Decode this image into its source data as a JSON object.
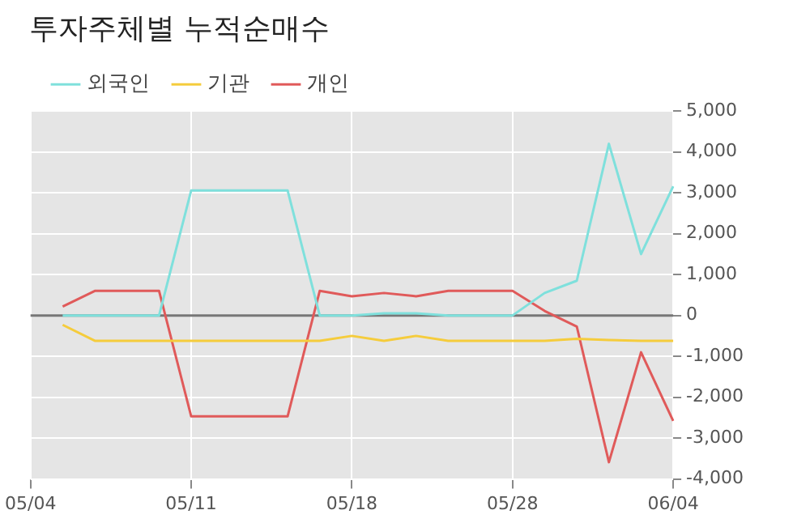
{
  "chart_data": {
    "type": "line",
    "title": "투자주체별 누적순매수",
    "categories": [
      "05/04",
      null,
      null,
      null,
      null,
      "05/11",
      null,
      null,
      null,
      null,
      "05/18",
      null,
      null,
      null,
      null,
      "05/28",
      null,
      null,
      null,
      null,
      "06/04"
    ],
    "series": [
      {
        "name": "외국인",
        "color": "#7fe0dc",
        "values": [
          null,
          0,
          0,
          0,
          0,
          3060,
          3060,
          3060,
          3060,
          0,
          0,
          50,
          50,
          0,
          0,
          0,
          550,
          850,
          4200,
          1500,
          3160
        ]
      },
      {
        "name": "기관",
        "color": "#f5cc3c",
        "values": [
          null,
          -230,
          -620,
          -620,
          -620,
          -620,
          -620,
          -620,
          -620,
          -620,
          -500,
          -620,
          -500,
          -620,
          -620,
          -620,
          -620,
          -570,
          -600,
          -620,
          -620
        ]
      },
      {
        "name": "개인",
        "color": "#e05a5a",
        "values": [
          null,
          220,
          600,
          600,
          600,
          -2470,
          -2470,
          -2470,
          -2470,
          600,
          470,
          550,
          470,
          600,
          600,
          600,
          110,
          -270,
          -3590,
          -900,
          -2580
        ]
      }
    ],
    "ylim": [
      -4000,
      5000
    ],
    "yticks": [
      {
        "value": -4000,
        "label": "-4,000"
      },
      {
        "value": -3000,
        "label": "-3,000"
      },
      {
        "value": -2000,
        "label": "-2,000"
      },
      {
        "value": -1000,
        "label": "-1,000"
      },
      0,
      {
        "value": 1000,
        "label": "1,000"
      },
      {
        "value": 2000,
        "label": "2,000"
      },
      {
        "value": 3000,
        "label": "3,000"
      },
      {
        "value": 4000,
        "label": "4,000"
      },
      {
        "value": 5000,
        "label": "5,000"
      }
    ],
    "ref_lines": [
      {
        "axis": "y",
        "value": 0,
        "color": "#777777"
      }
    ],
    "grid": true,
    "legend": "top left",
    "marker": "none",
    "line_style": "solid"
  }
}
